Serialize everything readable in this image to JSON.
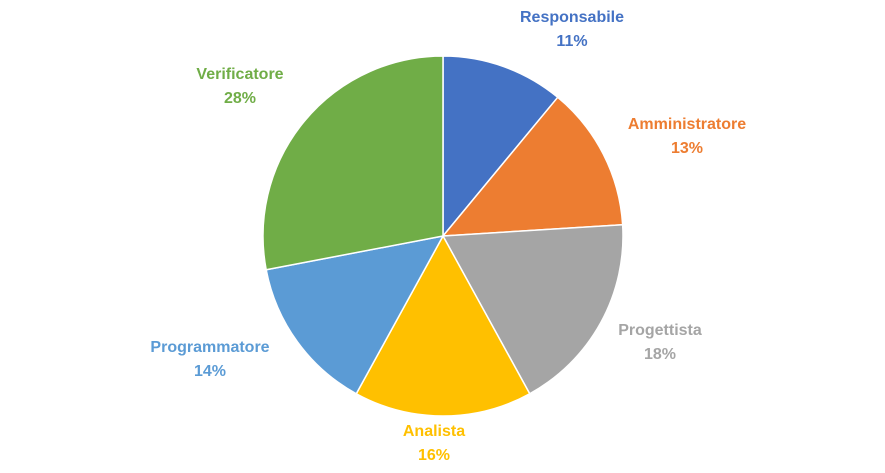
{
  "chart_data": {
    "type": "pie",
    "title": "",
    "legend": "none",
    "start_angle_deg": 0,
    "direction": "clockwise",
    "slices": [
      {
        "name": "Responsabile",
        "value": 11,
        "label": "11%",
        "color": "#4472C4",
        "label_color": "#4472C4"
      },
      {
        "name": "Amministratore",
        "value": 13,
        "label": "13%",
        "color": "#ED7D31",
        "label_color": "#ED7D31"
      },
      {
        "name": "Progettista",
        "value": 18,
        "label": "18%",
        "color": "#A5A5A5",
        "label_color": "#A5A5A5"
      },
      {
        "name": "Analista",
        "value": 16,
        "label": "16%",
        "color": "#FFC000",
        "label_color": "#FFC000"
      },
      {
        "name": "Programmatore",
        "value": 14,
        "label": "14%",
        "color": "#5B9BD5",
        "label_color": "#5B9BD5"
      },
      {
        "name": "Verificatore",
        "value": 28,
        "label": "28%",
        "color": "#70AD47",
        "label_color": "#70AD47"
      }
    ]
  }
}
